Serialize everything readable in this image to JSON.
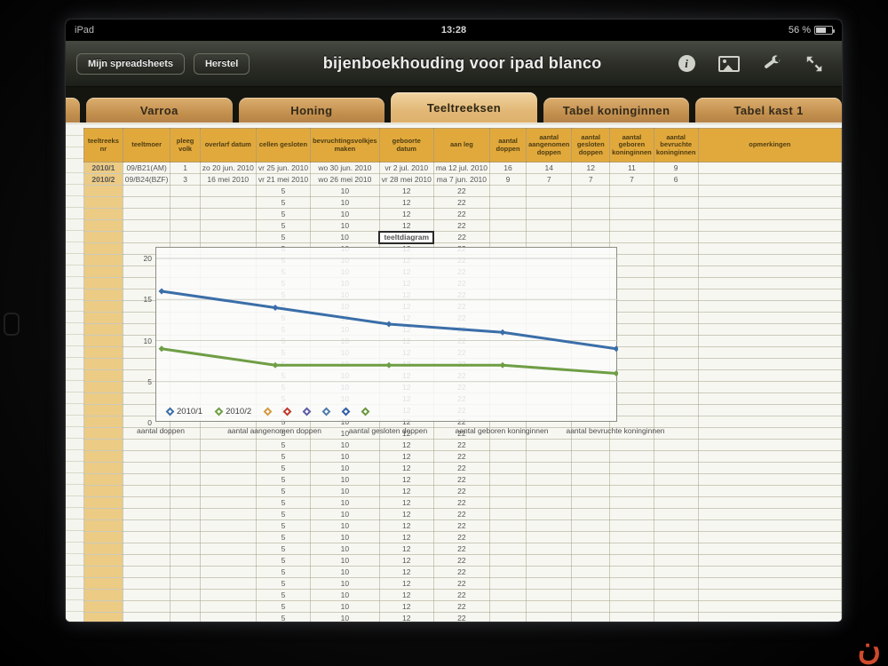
{
  "status_bar": {
    "carrier": "iPad",
    "time": "13:28",
    "battery_percent": "56 %"
  },
  "toolbar": {
    "title": "bijenboekhouding voor ipad blanco",
    "buttons": [
      {
        "label": "Mijn spreadsheets"
      },
      {
        "label": "Herstel"
      }
    ],
    "icons": [
      "info-icon",
      "image-icon",
      "wrench-icon",
      "fullscreen-icon"
    ]
  },
  "tabs": [
    {
      "label": "Varroa",
      "active": false
    },
    {
      "label": "Honing",
      "active": false
    },
    {
      "label": "Teeltreeksen",
      "active": true
    },
    {
      "label": "Tabel koninginnen",
      "active": false
    },
    {
      "label": "Tabel kast 1",
      "active": false
    }
  ],
  "sheet": {
    "headers": [
      "teeltreeks nr",
      "teeltmoer",
      "pleeg volk",
      "overlarf datum",
      "cellen gesloten",
      "bevruchtingsvolkjes maken",
      "geboorte datum",
      "aan leg",
      "aantal doppen",
      "aantal aangenomen doppen",
      "aantal gesloten doppen",
      "aantal geboren koninginnen",
      "aantal bevruchte koninginnen",
      "opmerkingen"
    ],
    "rows": [
      [
        "2010/1",
        "09/B21(AM)",
        "1",
        "zo 20 jun. 2010",
        "vr 25 jun. 2010",
        "wo 30 jun. 2010",
        "vr 2 jul. 2010",
        "ma 12 jul. 2010",
        "16",
        "14",
        "12",
        "11",
        "9",
        ""
      ],
      [
        "2010/2",
        "09/B24(BZF)",
        "3",
        "16 mei 2010",
        "vr 21 mei 2010",
        "wo 26 mei 2010",
        "vr 28 mei 2010",
        "ma 7 jun. 2010",
        "9",
        "7",
        "7",
        "7",
        "6",
        ""
      ]
    ],
    "filler_row": [
      "",
      "",
      "",
      "",
      "5",
      "10",
      "12",
      "22",
      "",
      "",
      "",
      "",
      "",
      ""
    ],
    "filler_count": 38,
    "selected_cell": {
      "row_offset": 4,
      "col": 6,
      "label": "teeltdiagram"
    }
  },
  "chart_data": {
    "type": "line",
    "title": "teeltdiagram",
    "categories": [
      "aantal doppen",
      "aantal aangenomen doppen",
      "aantal gesloten doppen",
      "aantal geboren koninginnen",
      "aantal bevruchte koninginnen"
    ],
    "series": [
      {
        "name": "2010/1",
        "color": "#3a6ea8",
        "values": [
          16,
          14,
          12,
          11,
          9
        ]
      },
      {
        "name": "2010/2",
        "color": "#6f9e45",
        "values": [
          9,
          7,
          7,
          7,
          6
        ]
      }
    ],
    "empty_series_colors": [
      "#d6993f",
      "#bf3b2b",
      "#5c5ca8",
      "#4f7dab",
      "#2f5fa5",
      "#69973f"
    ],
    "ylim": [
      0,
      20
    ],
    "yticks": [
      0,
      5,
      10,
      15,
      20
    ],
    "grid": true,
    "legend_position": "bottom-inside"
  },
  "colors": {
    "tab": "#c9985c",
    "tab_active": "#ecd0a0",
    "header_bg": "#e1a93c",
    "column_a_bg": "#eccb85",
    "watermark": "#cf4a2c"
  },
  "watermark": "ن"
}
